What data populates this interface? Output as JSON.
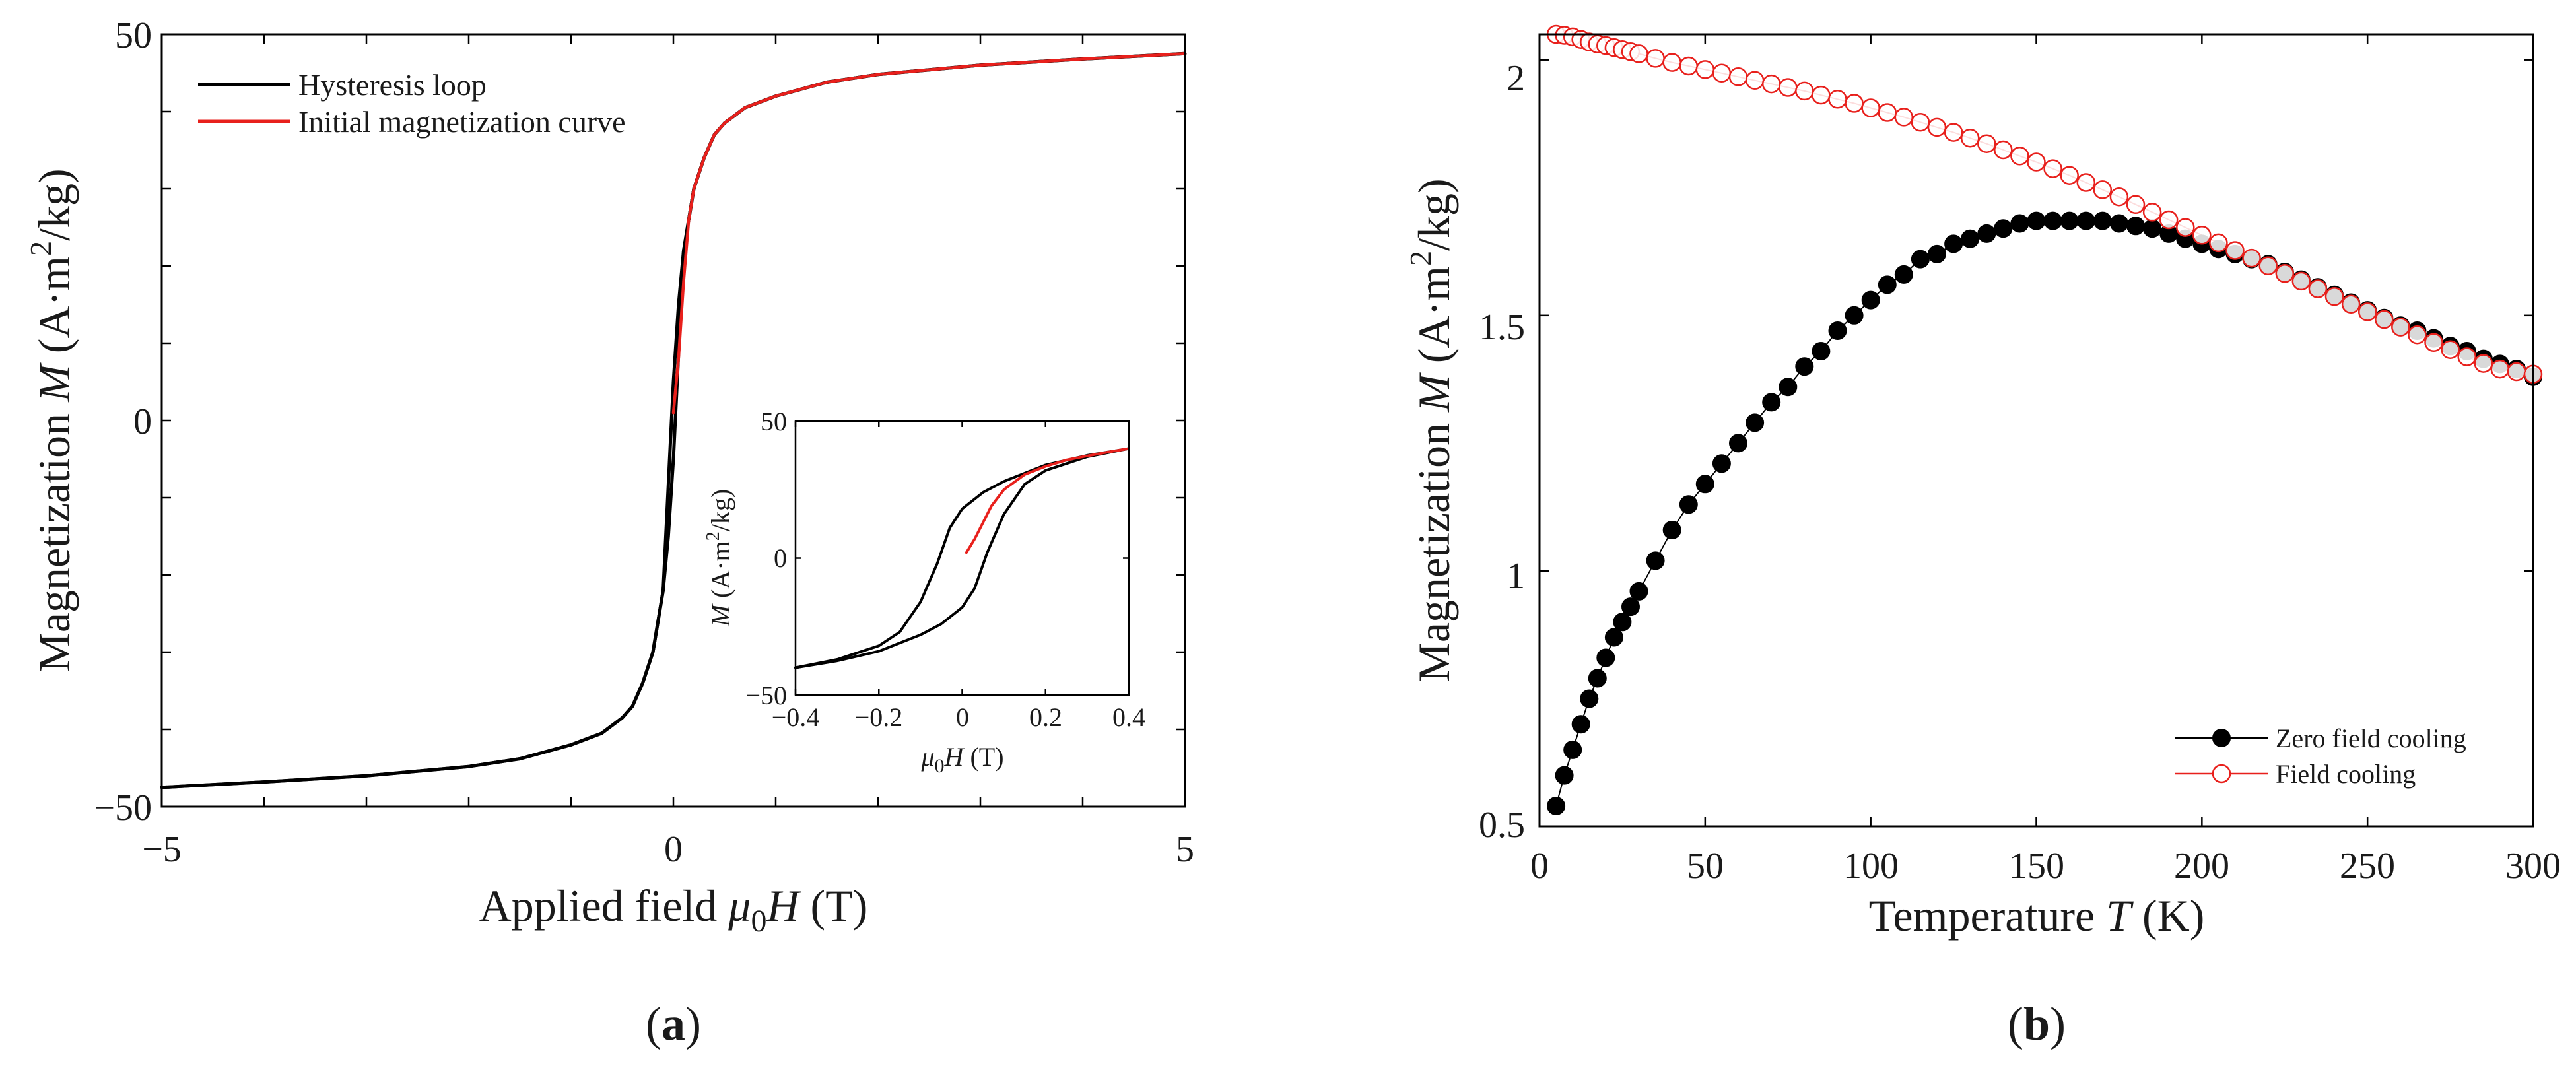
{
  "chart_data": [
    {
      "panel": "(a)",
      "panel_letter": "a",
      "type": "line",
      "xlabel": "Applied field μ0H (T)",
      "xlabel_parts": {
        "pre": "Applied field ",
        "mu": "μ",
        "sub": "0",
        "var": "H",
        "unit": " (T)"
      },
      "ylabel": "Magnetization M (A·m2/kg)",
      "ylabel_parts": {
        "pre": "Magnetization  ",
        "var": "M",
        "unit_a": " (A·m",
        "sup": "2",
        "unit_b": "/kg)"
      },
      "xlim": [
        -5,
        5
      ],
      "ylim": [
        -50,
        50
      ],
      "xticks": [
        "−5",
        "0",
        "5"
      ],
      "yticks": [
        "−50",
        "0",
        "50"
      ],
      "legend": [
        "Hysteresis loop",
        "Initial magnetization curve"
      ],
      "legend_position": "top-left",
      "series": [
        {
          "name": "Hysteresis loop",
          "color": "#000000",
          "x": [
            -5,
            -4,
            -3,
            -2,
            -1.5,
            -1,
            -0.7,
            -0.5,
            -0.4,
            -0.3,
            -0.2,
            -0.1,
            0,
            0.05,
            0.1,
            0.2,
            0.3,
            0.4,
            0.5,
            0.7,
            1,
            1.5,
            2,
            3,
            4,
            5
          ],
          "y": [
            -47.5,
            -46.8,
            -46,
            -44.8,
            -43.8,
            -42,
            -40.5,
            -38.5,
            -37,
            -34,
            -30,
            -22,
            5,
            15,
            22,
            30,
            34,
            37,
            38.5,
            40.5,
            42,
            43.8,
            44.8,
            46,
            46.8,
            47.5
          ]
        },
        {
          "name": "Initial magnetization curve",
          "color": "#e8201c",
          "x": [
            0,
            0.05,
            0.1,
            0.15,
            0.2,
            0.3,
            0.4,
            0.5,
            0.7,
            1,
            1.5,
            2,
            3,
            4,
            5
          ],
          "y": [
            1,
            8,
            18,
            26,
            30,
            34,
            37,
            38.5,
            40.5,
            42,
            43.8,
            44.8,
            46,
            46.8,
            47.5
          ]
        }
      ],
      "inset": {
        "xlabel": "μ0H (T)",
        "xlabel_parts": {
          "mu": "μ",
          "sub": "0",
          "var": "H",
          "unit": " (T)"
        },
        "ylabel": "M (A·m2/kg)",
        "ylabel_parts": {
          "var": "M",
          "unit_a": " (A·m",
          "sup": "2",
          "unit_b": "/kg)"
        },
        "xlim": [
          -0.4,
          0.4
        ],
        "ylim": [
          -50,
          50
        ],
        "xticks": [
          "−0.4",
          "−0.2",
          "0",
          "0.2",
          "0.4"
        ],
        "yticks": [
          "−50",
          "0",
          "50"
        ],
        "series": [
          {
            "name": "Hysteresis loop (descending)",
            "color": "#000000",
            "x": [
              0.4,
              0.3,
              0.2,
              0.15,
              0.1,
              0.05,
              0,
              -0.03,
              -0.06,
              -0.1,
              -0.15,
              -0.2,
              -0.3,
              -0.4
            ],
            "y": [
              40,
              37.5,
              34,
              31,
              28,
              24,
              18,
              11,
              -2,
              -16,
              -27,
              -32,
              -37,
              -40
            ]
          },
          {
            "name": "Hysteresis loop (ascending)",
            "color": "#000000",
            "x": [
              -0.4,
              -0.3,
              -0.2,
              -0.15,
              -0.1,
              -0.05,
              0,
              0.03,
              0.06,
              0.1,
              0.15,
              0.2,
              0.3,
              0.4
            ],
            "y": [
              -40,
              -37.5,
              -34,
              -31,
              -28,
              -24,
              -18,
              -11,
              2,
              16,
              27,
              32,
              37,
              40
            ]
          },
          {
            "name": "Initial magnetization curve",
            "color": "#e8201c",
            "x": [
              0.01,
              0.03,
              0.05,
              0.07,
              0.1,
              0.15,
              0.2,
              0.25,
              0.3,
              0.35,
              0.4
            ],
            "y": [
              2,
              7,
              13,
              19,
              25,
              30.5,
              33.5,
              35.8,
              37.3,
              38.7,
              40
            ]
          }
        ]
      }
    },
    {
      "panel": "(b)",
      "panel_letter": "b",
      "type": "scatter",
      "xlabel": "Temperature T (K)",
      "xlabel_parts": {
        "pre": "Temperature ",
        "var": "T",
        "unit": " (K)"
      },
      "ylabel": "Magnetization M (A·m2/kg)",
      "ylabel_parts": {
        "pre": "Magnetization  ",
        "var": "M",
        "unit_a": " (A·m",
        "sup": "2",
        "unit_b": "/kg)"
      },
      "xlim": [
        0,
        300
      ],
      "ylim": [
        0.5,
        2.05
      ],
      "xticks": [
        "0",
        "50",
        "100",
        "150",
        "200",
        "250",
        "300"
      ],
      "yticks": [
        "0.5",
        "1",
        "1.5",
        "2"
      ],
      "legend": [
        "Zero field cooling",
        "Field cooling"
      ],
      "legend_position": "bottom-right",
      "series": [
        {
          "name": "Zero field cooling",
          "color": "#000000",
          "marker": "filled-circle",
          "x": [
            5,
            7.5,
            10,
            12.5,
            15,
            17.5,
            20,
            22.5,
            25,
            27.5,
            30,
            35,
            40,
            45,
            50,
            55,
            60,
            65,
            70,
            75,
            80,
            85,
            90,
            95,
            100,
            105,
            110,
            115,
            120,
            125,
            130,
            135,
            140,
            145,
            150,
            155,
            160,
            165,
            170,
            175,
            180,
            185,
            190,
            195,
            200,
            205,
            210,
            215,
            220,
            225,
            230,
            235,
            240,
            245,
            250,
            255,
            260,
            265,
            270,
            275,
            280,
            285,
            290,
            295,
            300
          ],
          "y": [
            0.54,
            0.6,
            0.65,
            0.7,
            0.75,
            0.79,
            0.83,
            0.87,
            0.9,
            0.93,
            0.96,
            1.02,
            1.08,
            1.13,
            1.17,
            1.21,
            1.25,
            1.29,
            1.33,
            1.36,
            1.4,
            1.43,
            1.47,
            1.5,
            1.53,
            1.56,
            1.58,
            1.61,
            1.62,
            1.64,
            1.65,
            1.66,
            1.67,
            1.68,
            1.685,
            1.685,
            1.685,
            1.685,
            1.685,
            1.68,
            1.675,
            1.67,
            1.66,
            1.65,
            1.64,
            1.63,
            1.62,
            1.61,
            1.6,
            1.585,
            1.57,
            1.555,
            1.54,
            1.525,
            1.51,
            1.495,
            1.48,
            1.47,
            1.455,
            1.44,
            1.43,
            1.415,
            1.405,
            1.395,
            1.38
          ]
        },
        {
          "name": "Field cooling",
          "color": "#e8201c",
          "marker": "open-circle",
          "x": [
            5,
            7.5,
            10,
            12.5,
            15,
            17.5,
            20,
            22.5,
            25,
            27.5,
            30,
            35,
            40,
            45,
            50,
            55,
            60,
            65,
            70,
            75,
            80,
            85,
            90,
            95,
            100,
            105,
            110,
            115,
            120,
            125,
            130,
            135,
            140,
            145,
            150,
            155,
            160,
            165,
            170,
            175,
            180,
            185,
            190,
            195,
            200,
            205,
            210,
            215,
            220,
            225,
            230,
            235,
            240,
            245,
            250,
            255,
            260,
            265,
            270,
            275,
            280,
            285,
            290,
            295,
            300
          ],
          "y": [
            2.05,
            2.048,
            2.045,
            2.04,
            2.035,
            2.031,
            2.028,
            2.024,
            2.02,
            2.016,
            2.012,
            2.003,
            1.995,
            1.988,
            1.981,
            1.974,
            1.967,
            1.96,
            1.953,
            1.946,
            1.939,
            1.931,
            1.923,
            1.915,
            1.906,
            1.897,
            1.888,
            1.878,
            1.868,
            1.858,
            1.847,
            1.836,
            1.824,
            1.812,
            1.8,
            1.787,
            1.774,
            1.76,
            1.746,
            1.732,
            1.717,
            1.702,
            1.687,
            1.672,
            1.657,
            1.642,
            1.627,
            1.612,
            1.597,
            1.582,
            1.567,
            1.552,
            1.537,
            1.522,
            1.507,
            1.492,
            1.477,
            1.462,
            1.447,
            1.433,
            1.419,
            1.406,
            1.395,
            1.39,
            1.385
          ]
        }
      ]
    }
  ]
}
